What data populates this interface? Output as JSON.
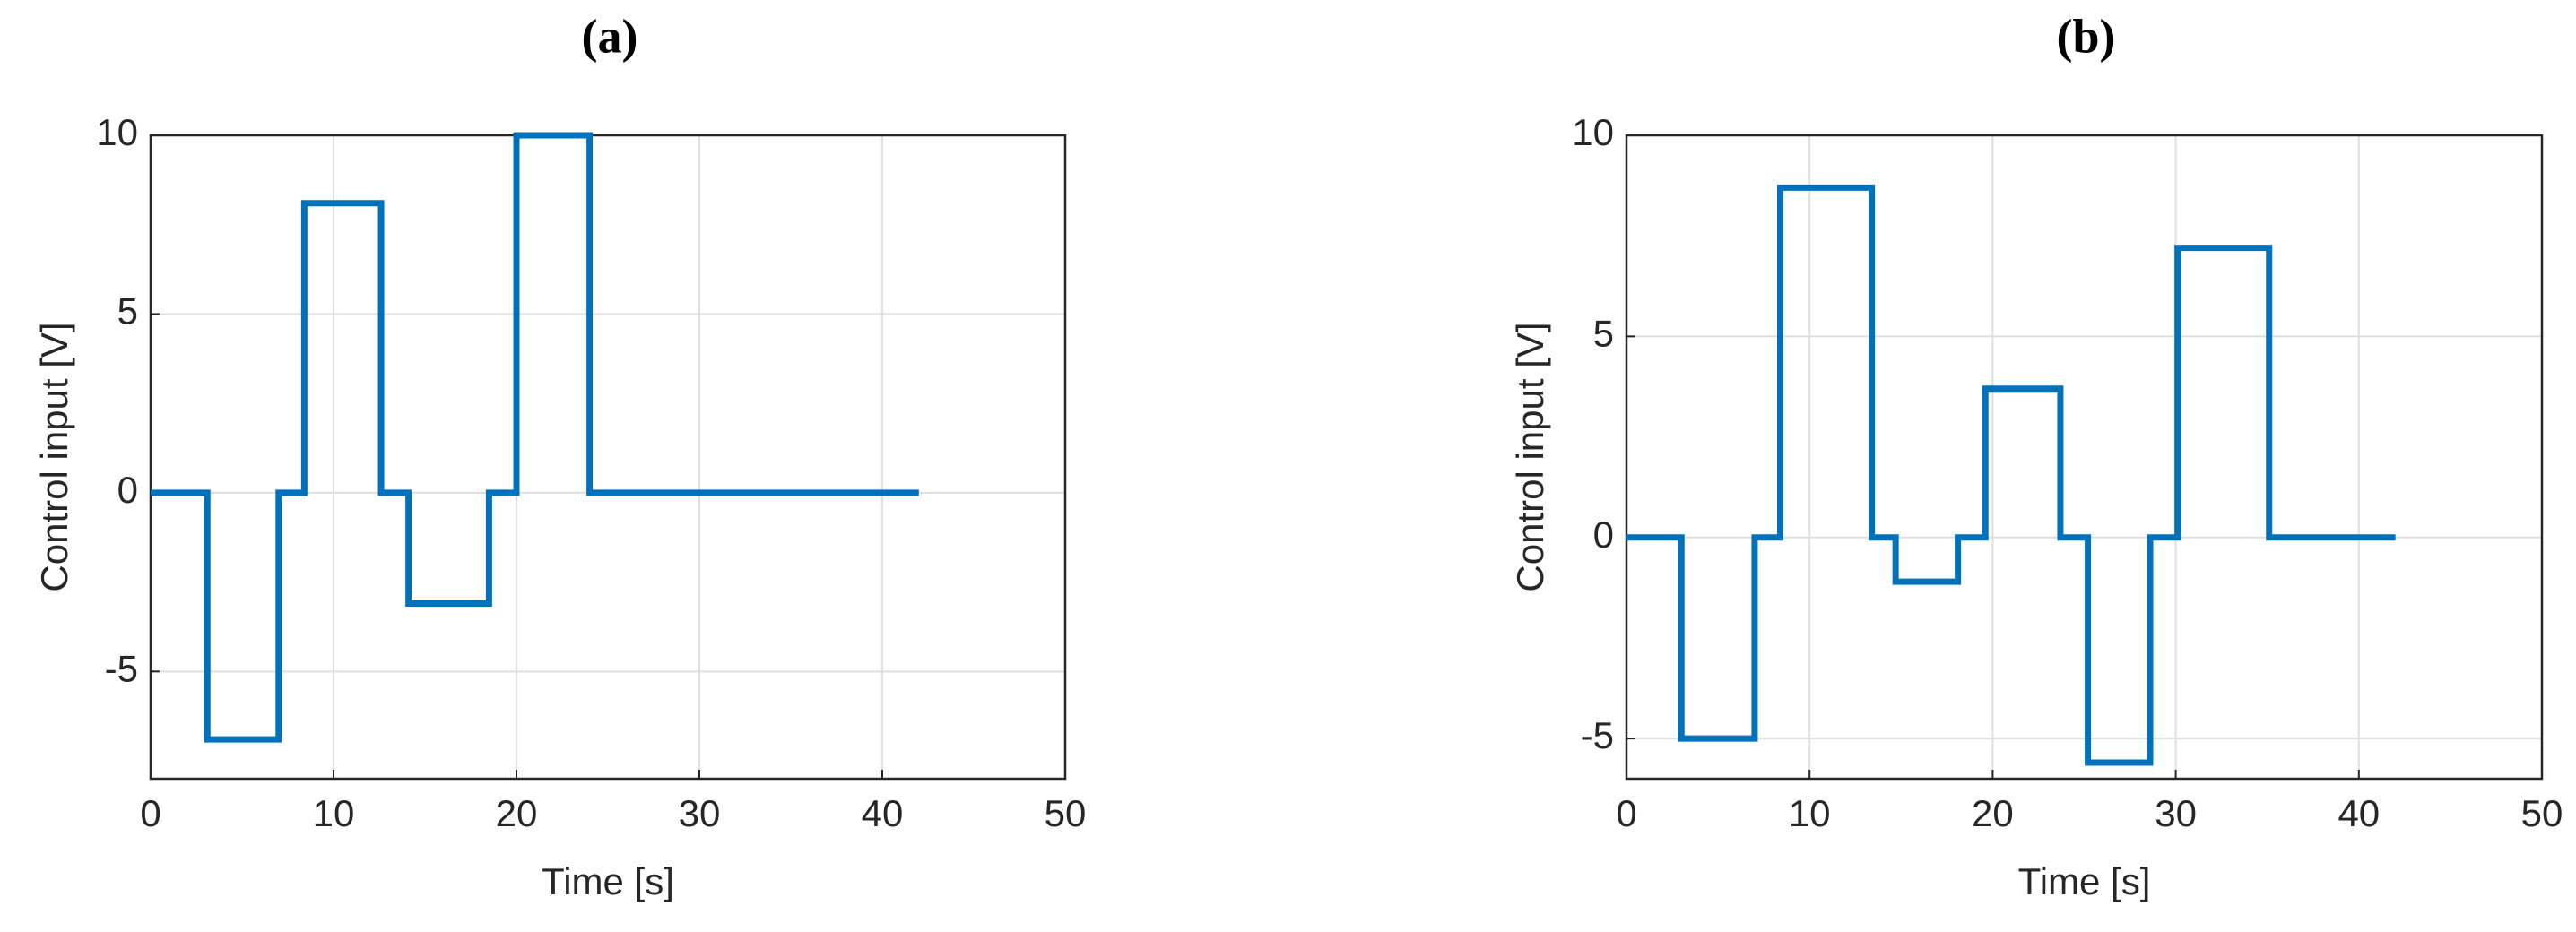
{
  "chart_data": [
    {
      "type": "line",
      "title": "(a)",
      "x_label": "Time [s]",
      "y_label": "Control input [V]",
      "x": [
        0,
        3.1,
        3.1,
        7,
        7,
        8.4,
        8.4,
        12.6,
        12.6,
        14.1,
        14.1,
        18.5,
        18.5,
        20,
        20,
        24,
        24,
        42
      ],
      "values": [
        0,
        0,
        -6.9,
        -6.9,
        0,
        0,
        8.1,
        8.1,
        0,
        0,
        -3.1,
        -3.1,
        0,
        0,
        10,
        10,
        0,
        0
      ],
      "color": "#0072bd",
      "xlim": [
        0,
        50
      ],
      "xticks": [
        0,
        10,
        20,
        30,
        40,
        50
      ],
      "ylim": [
        -8,
        10
      ],
      "yticks": [
        -5,
        0,
        5,
        10
      ],
      "grid": true
    },
    {
      "type": "line",
      "title": "(b)",
      "x_label": "Time [s]",
      "y_label": "Control input [V]",
      "x": [
        0,
        3,
        3,
        7,
        7,
        8.4,
        8.4,
        13.4,
        13.4,
        14.7,
        14.7,
        18.1,
        18.1,
        19.6,
        19.6,
        23.7,
        23.7,
        25.2,
        25.2,
        28.6,
        28.6,
        30.1,
        30.1,
        35.1,
        35.1,
        42
      ],
      "values": [
        0,
        0,
        -5,
        -5,
        0,
        0,
        8.7,
        8.7,
        0,
        0,
        -1.1,
        -1.1,
        0,
        0,
        3.7,
        3.7,
        0,
        0,
        -5.6,
        -5.6,
        0,
        0,
        7.2,
        7.2,
        0,
        0
      ],
      "color": "#0072bd",
      "xlim": [
        0,
        50
      ],
      "xticks": [
        0,
        10,
        20,
        30,
        40,
        50
      ],
      "ylim": [
        -6,
        10
      ],
      "yticks": [
        -5,
        0,
        5,
        10
      ],
      "grid": true
    }
  ]
}
